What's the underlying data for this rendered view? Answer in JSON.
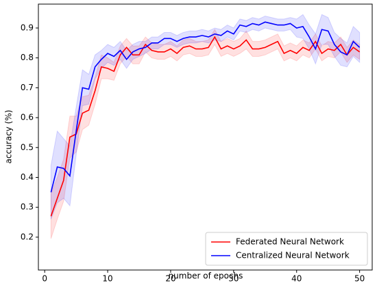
{
  "chart_data": {
    "type": "line",
    "xlabel": "number of epochs",
    "ylabel": "accuracy (%)",
    "x": [
      1,
      2,
      3,
      4,
      5,
      6,
      7,
      8,
      9,
      10,
      11,
      12,
      13,
      14,
      15,
      16,
      17,
      18,
      19,
      20,
      21,
      22,
      23,
      24,
      25,
      26,
      27,
      28,
      29,
      30,
      31,
      32,
      33,
      34,
      35,
      36,
      37,
      38,
      39,
      40,
      41,
      42,
      43,
      44,
      45,
      46,
      47,
      48,
      49,
      50
    ],
    "series": [
      {
        "name": "Federated Neural Network",
        "color": "#ff0000",
        "values": [
          0.27,
          0.33,
          0.39,
          0.535,
          0.545,
          0.615,
          0.625,
          0.69,
          0.77,
          0.765,
          0.755,
          0.81,
          0.835,
          0.81,
          0.81,
          0.845,
          0.825,
          0.82,
          0.82,
          0.83,
          0.815,
          0.835,
          0.84,
          0.83,
          0.83,
          0.835,
          0.87,
          0.83,
          0.84,
          0.83,
          0.84,
          0.86,
          0.83,
          0.83,
          0.835,
          0.845,
          0.855,
          0.815,
          0.825,
          0.815,
          0.835,
          0.825,
          0.855,
          0.815,
          0.83,
          0.825,
          0.845,
          0.81,
          0.835,
          0.82
        ],
        "errors": [
          0.075,
          0.07,
          0.07,
          0.07,
          0.06,
          0.055,
          0.05,
          0.045,
          0.04,
          0.035,
          0.03,
          0.03,
          0.03,
          0.03,
          0.03,
          0.025,
          0.025,
          0.025,
          0.025,
          0.025,
          0.025,
          0.025,
          0.025,
          0.025,
          0.025,
          0.025,
          0.025,
          0.025,
          0.025,
          0.025,
          0.025,
          0.03,
          0.025,
          0.025,
          0.025,
          0.025,
          0.025,
          0.025,
          0.025,
          0.025,
          0.025,
          0.025,
          0.025,
          0.025,
          0.025,
          0.025,
          0.025,
          0.025,
          0.025,
          0.025
        ]
      },
      {
        "name": "Centralized Neural Network",
        "color": "#0000ff",
        "values": [
          0.35,
          0.435,
          0.43,
          0.405,
          0.555,
          0.7,
          0.695,
          0.77,
          0.795,
          0.815,
          0.805,
          0.825,
          0.795,
          0.82,
          0.83,
          0.835,
          0.85,
          0.85,
          0.865,
          0.865,
          0.855,
          0.865,
          0.87,
          0.87,
          0.875,
          0.87,
          0.88,
          0.875,
          0.89,
          0.88,
          0.91,
          0.905,
          0.915,
          0.91,
          0.92,
          0.915,
          0.91,
          0.91,
          0.915,
          0.9,
          0.905,
          0.87,
          0.83,
          0.895,
          0.89,
          0.845,
          0.82,
          0.81,
          0.855,
          0.835
        ],
        "errors": [
          0.09,
          0.12,
          0.1,
          0.1,
          0.08,
          0.06,
          0.05,
          0.04,
          0.03,
          0.03,
          0.03,
          0.03,
          0.03,
          0.025,
          0.025,
          0.02,
          0.02,
          0.02,
          0.02,
          0.02,
          0.02,
          0.02,
          0.02,
          0.02,
          0.02,
          0.02,
          0.02,
          0.02,
          0.02,
          0.02,
          0.02,
          0.02,
          0.02,
          0.02,
          0.02,
          0.02,
          0.02,
          0.02,
          0.02,
          0.03,
          0.04,
          0.04,
          0.05,
          0.05,
          0.045,
          0.04,
          0.045,
          0.04,
          0.05,
          0.05
        ]
      }
    ],
    "xlim": [
      -1,
      52
    ],
    "xticks": [
      0,
      10,
      20,
      30,
      40,
      50
    ],
    "ylim": [
      0.09,
      0.98
    ],
    "yticks": [
      0.2,
      0.3,
      0.4,
      0.5,
      0.6,
      0.7,
      0.8,
      0.9
    ],
    "grid": false,
    "legend": "lower right"
  }
}
